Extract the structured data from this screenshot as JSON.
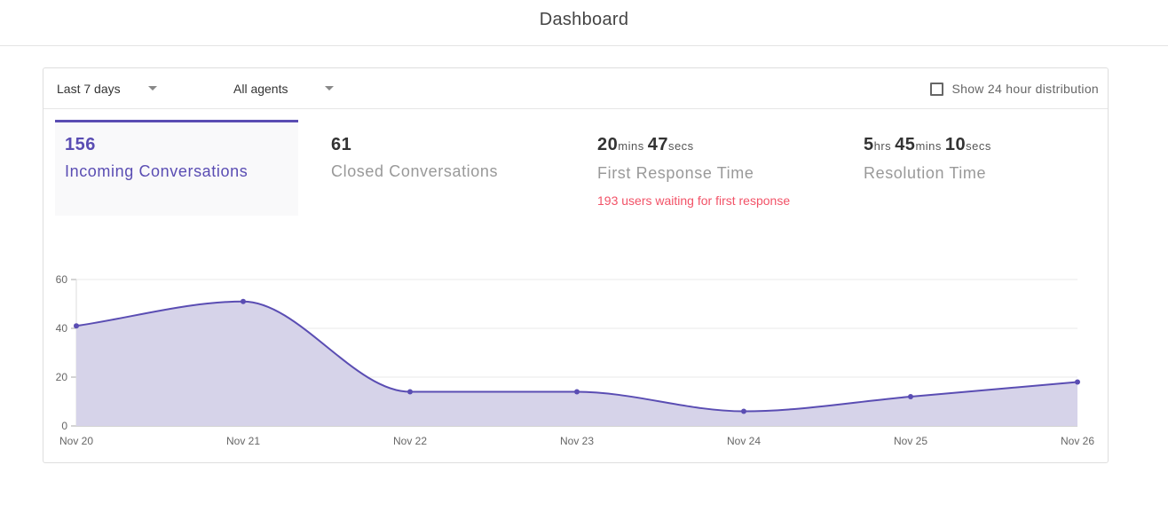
{
  "header": {
    "title": "Dashboard"
  },
  "filters": {
    "range": {
      "selected": "Last 7 days"
    },
    "agents": {
      "selected": "All agents"
    },
    "distribution": {
      "label": "Show 24 hour distribution",
      "checked": false
    }
  },
  "metrics": {
    "incoming": {
      "value": "156",
      "label": "Incoming Conversations"
    },
    "closed": {
      "value": "61",
      "label": "Closed Conversations"
    },
    "first_response": {
      "mins": "20",
      "mins_unit": "mins",
      "secs": "47",
      "secs_unit": "secs",
      "label": "First Response Time",
      "note": "193 users waiting for first response"
    },
    "resolution": {
      "hrs": "5",
      "hrs_unit": "hrs",
      "mins": "45",
      "mins_unit": "mins",
      "secs": "10",
      "secs_unit": "secs",
      "label": "Resolution Time"
    }
  },
  "colors": {
    "accent": "#5a4db3",
    "fill": "#d6d3e9",
    "warning": "#f25267"
  },
  "chart_data": {
    "type": "area",
    "categories": [
      "Nov 20",
      "Nov 21",
      "Nov 22",
      "Nov 23",
      "Nov 24",
      "Nov 25",
      "Nov 26"
    ],
    "series": [
      {
        "values": [
          41,
          51,
          14,
          14,
          6,
          12,
          18
        ]
      }
    ],
    "ylim": [
      0,
      60
    ],
    "yticks": [
      0,
      20,
      40,
      60
    ],
    "grid": true,
    "title": "",
    "xlabel": "",
    "ylabel": ""
  }
}
